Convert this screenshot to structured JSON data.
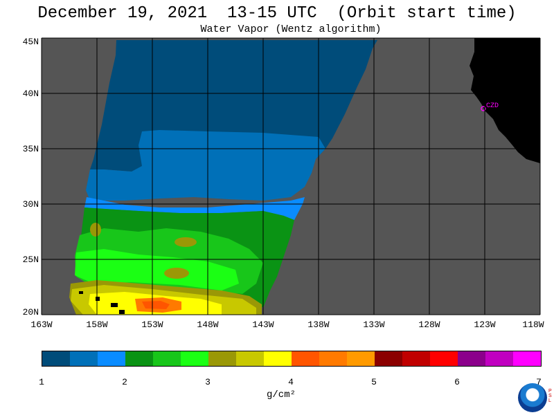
{
  "title": "December 19, 2021  13-15 UTC  (Orbit start time)",
  "subtitle": "Water Vapor (Wentz algorithm)",
  "lat_labels": [
    "45N",
    "40N",
    "35N",
    "30N",
    "25N",
    "20N"
  ],
  "lon_labels": [
    "163W",
    "158W",
    "153W",
    "148W",
    "143W",
    "138W",
    "133W",
    "128W",
    "123W",
    "118W"
  ],
  "station_label": "CZD",
  "colorbar": {
    "colors": [
      "#004c7a",
      "#0070b8",
      "#0a8cff",
      "#0a9314",
      "#18c61a",
      "#1bff14",
      "#9a9806",
      "#c8c800",
      "#ffff00",
      "#ff5500",
      "#ff7a00",
      "#ff9a00",
      "#8b0000",
      "#c00000",
      "#ff0000",
      "#8b008b",
      "#c000c0",
      "#ff00ff"
    ],
    "ticks": [
      "1",
      "2",
      "3",
      "4",
      "5",
      "6",
      "7"
    ],
    "unit": "g/cm²"
  },
  "map_colors": {
    "background_gray": "#555555",
    "land_black": "#000000",
    "grid": "#000000",
    "marker": "#ff00ff"
  }
}
